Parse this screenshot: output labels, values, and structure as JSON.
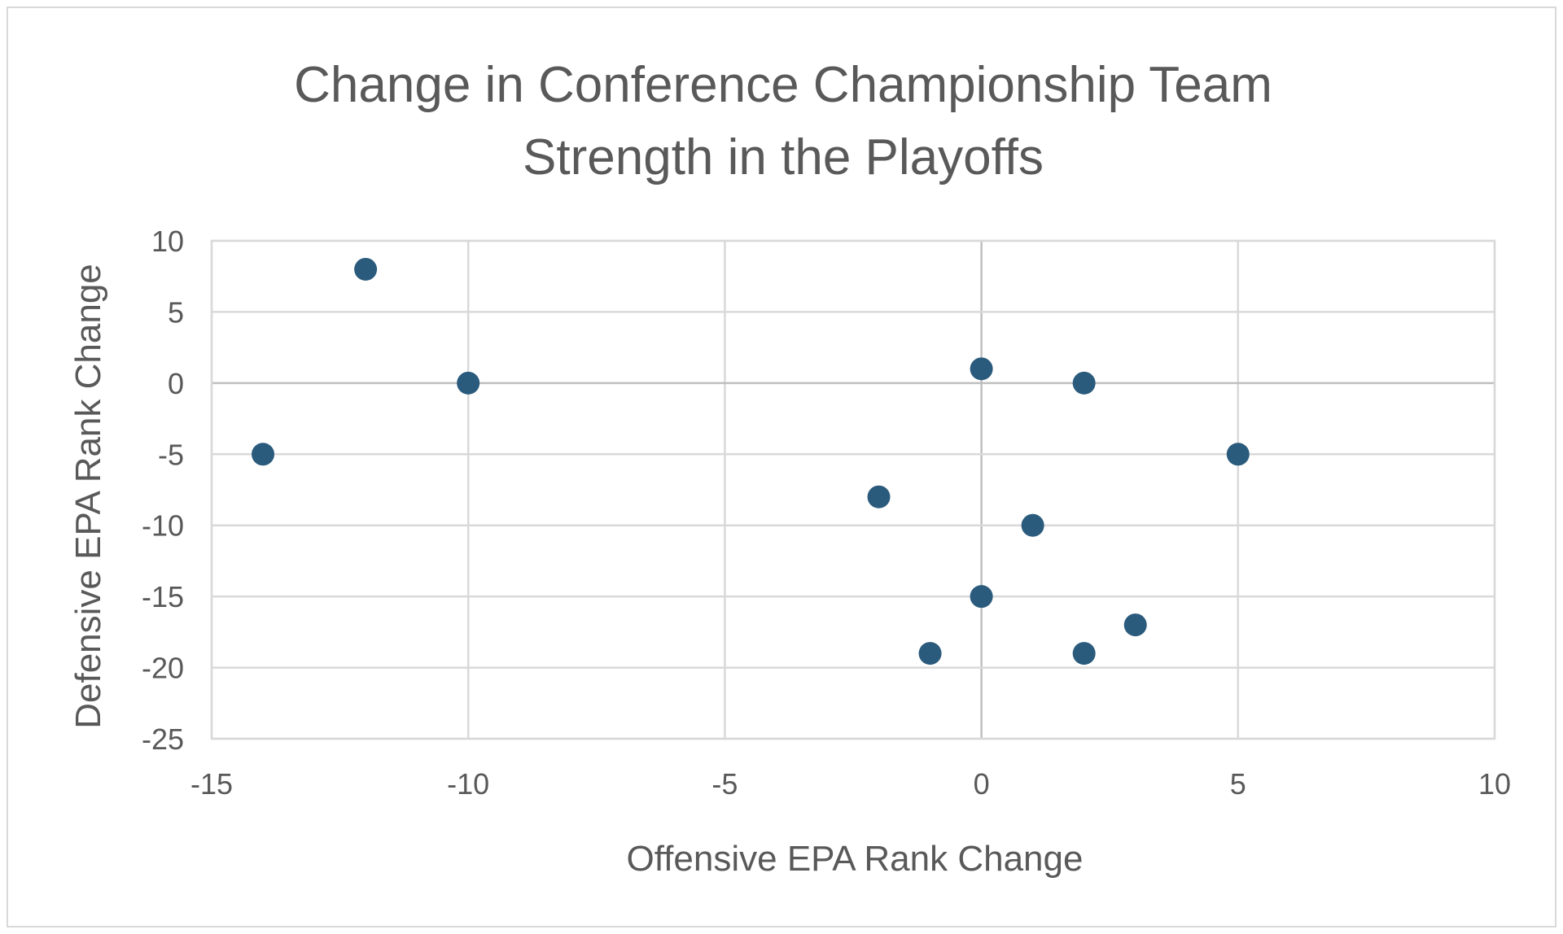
{
  "chart_data": {
    "type": "scatter",
    "title_lines": [
      "Change in Conference Championship Team",
      "Strength in the Playoffs"
    ],
    "xlabel": "Offensive EPA Rank Change",
    "ylabel": "Defensive EPA Rank Change",
    "xlim": [
      -15,
      10
    ],
    "ylim": [
      -25,
      10
    ],
    "x_ticks": [
      -15,
      -10,
      -5,
      0,
      5,
      10
    ],
    "y_ticks": [
      10,
      5,
      0,
      -5,
      -10,
      -15,
      -20,
      -25
    ],
    "grid": true,
    "legend": "none",
    "marker_color": "#2a5a7c",
    "points": [
      {
        "x": -14,
        "y": -5
      },
      {
        "x": -12,
        "y": 8
      },
      {
        "x": -10,
        "y": 0
      },
      {
        "x": -2,
        "y": -8
      },
      {
        "x": -1,
        "y": -19
      },
      {
        "x": 0,
        "y": 1
      },
      {
        "x": 0,
        "y": -15
      },
      {
        "x": 1,
        "y": -10
      },
      {
        "x": 2,
        "y": 0
      },
      {
        "x": 2,
        "y": -19
      },
      {
        "x": 3,
        "y": -17
      },
      {
        "x": 5,
        "y": -5
      }
    ]
  }
}
